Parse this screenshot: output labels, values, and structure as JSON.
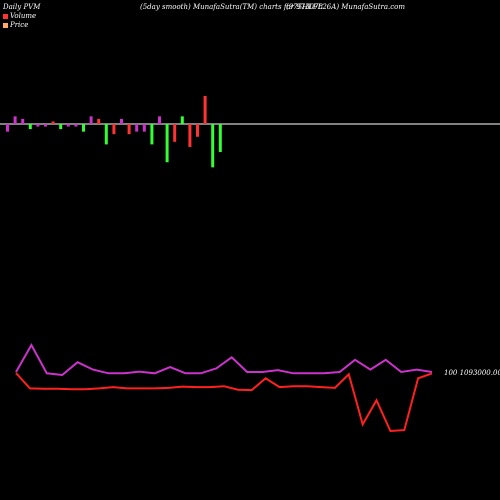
{
  "header": {
    "left": "Daily PVM",
    "middle": "(5day smooth) MunafaSutra(TM) charts for 973078",
    "right": "(975HLFL26A) MunafaSutra.com"
  },
  "legend": {
    "volume": "Volume",
    "price": "Price"
  },
  "colors": {
    "background": "#000000",
    "baseline": "#ffffff",
    "volume_up": "#33ff33",
    "volume_down": "#ff3333",
    "volume_mid": "#cc33cc",
    "price_line": "#ff2020",
    "pvm_line": "#cc33cc",
    "legend_volume": "#ff3333",
    "legend_price": "#ffaa66"
  },
  "chart_data": {
    "type": "bar",
    "volume_bars": {
      "note_values_relative": true,
      "values": [
        -3,
        3,
        2,
        -2,
        -1,
        -1,
        1,
        -2,
        -1,
        -1,
        -3,
        3,
        2,
        -8,
        -4,
        2,
        -4,
        -3,
        -3,
        -8,
        3,
        -15,
        -7,
        3,
        -9,
        -5,
        11,
        -17,
        -11
      ],
      "colors": [
        "volume_mid",
        "volume_mid",
        "volume_mid",
        "volume_up",
        "volume_mid",
        "volume_mid",
        "volume_down",
        "volume_up",
        "volume_mid",
        "volume_mid",
        "volume_up",
        "volume_mid",
        "volume_down",
        "volume_up",
        "volume_down",
        "volume_mid",
        "volume_down",
        "volume_mid",
        "volume_mid",
        "volume_up",
        "volume_mid",
        "volume_up",
        "volume_down",
        "volume_up",
        "volume_down",
        "volume_down",
        "volume_down",
        "volume_up",
        "volume_up"
      ]
    },
    "price_series": [
      62,
      27,
      26,
      26,
      25,
      25,
      27,
      30,
      27,
      27,
      27,
      28,
      31,
      30,
      30,
      32,
      24,
      23,
      50,
      30,
      32,
      32,
      30,
      28,
      59,
      -55,
      0,
      -70,
      -68,
      50,
      61
    ],
    "pvm_series": [
      50,
      160,
      45,
      38,
      90,
      60,
      45,
      45,
      52,
      45,
      70,
      45,
      45,
      65,
      110,
      50,
      50,
      58,
      45,
      45,
      45,
      50,
      100,
      60,
      100,
      50,
      60,
      50
    ],
    "price_label": "100 1093000.00"
  }
}
